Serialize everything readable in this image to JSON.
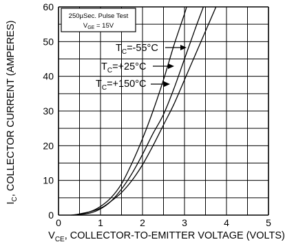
{
  "chart_data": {
    "type": "line",
    "xlabel": {
      "main": "V",
      "sub": "CE",
      "rest": ", COLLECTOR-TO-EMITTER VOLTAGE (VOLTS)"
    },
    "ylabel": {
      "main": "I",
      "sub": "C",
      "rest": ", COLLECTOR CURRENT (AMPERES)"
    },
    "xlim": [
      0,
      5
    ],
    "ylim": [
      0,
      60
    ],
    "x_ticks": [
      "0",
      "1",
      "2",
      "3",
      "4",
      "5"
    ],
    "y_ticks": [
      "0",
      "10",
      "20",
      "30",
      "40",
      "50",
      "60"
    ],
    "grid": {
      "x_step": 0.5,
      "y_step": 5,
      "on": true
    },
    "test_box": {
      "line1": "250µSec. Pulse Test",
      "line2_main": "V",
      "line2_sub": "GE",
      "line2_rest": " = 15V"
    },
    "series": [
      {
        "name_main": "T",
        "name_sub": "C",
        "name_rest": "=-55°C",
        "points": [
          [
            0.35,
            0
          ],
          [
            0.75,
            1
          ],
          [
            1.0,
            2.5
          ],
          [
            1.25,
            5
          ],
          [
            1.5,
            9
          ],
          [
            1.75,
            15
          ],
          [
            2.0,
            22
          ],
          [
            2.25,
            30
          ],
          [
            2.5,
            39
          ],
          [
            2.75,
            49
          ],
          [
            3.0,
            58
          ],
          [
            3.05,
            60
          ]
        ]
      },
      {
        "name_main": "T",
        "name_sub": "C",
        "name_rest": "=+25°C",
        "points": [
          [
            0.35,
            0
          ],
          [
            0.75,
            0.6
          ],
          [
            1.0,
            1.8
          ],
          [
            1.25,
            4
          ],
          [
            1.5,
            7.5
          ],
          [
            1.75,
            12
          ],
          [
            2.0,
            17.5
          ],
          [
            2.25,
            23.5
          ],
          [
            2.5,
            29
          ],
          [
            2.75,
            36.5
          ],
          [
            3.0,
            45
          ],
          [
            3.25,
            53.5
          ],
          [
            3.45,
            60
          ]
        ]
      },
      {
        "name_main": "T",
        "name_sub": "C",
        "name_rest": "=+150°C",
        "points": [
          [
            0.3,
            0
          ],
          [
            0.6,
            0.5
          ],
          [
            1.0,
            2
          ],
          [
            1.25,
            4
          ],
          [
            1.5,
            6.5
          ],
          [
            1.75,
            10
          ],
          [
            2.0,
            14.5
          ],
          [
            2.25,
            20
          ],
          [
            2.5,
            26
          ],
          [
            2.75,
            32
          ],
          [
            3.0,
            39
          ],
          [
            3.25,
            46
          ],
          [
            3.5,
            53
          ],
          [
            3.75,
            60
          ]
        ]
      }
    ]
  }
}
